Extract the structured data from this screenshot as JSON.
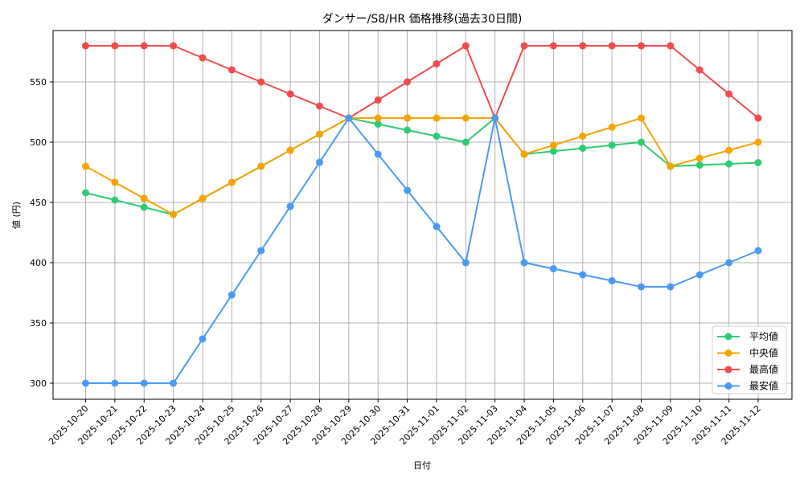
{
  "chart_data": {
    "type": "line",
    "title": "ダンサー/S8/HR 価格推移(過去30日間)",
    "xlabel": "日付",
    "ylabel": "値 (円)",
    "ylim": [
      286,
      592
    ],
    "yticks": [
      300,
      350,
      400,
      450,
      500,
      550
    ],
    "grid": true,
    "legend_position": "lower right",
    "categories": [
      "2025-10-20",
      "2025-10-21",
      "2025-10-22",
      "2025-10-23",
      "2025-10-24",
      "2025-10-25",
      "2025-10-26",
      "2025-10-27",
      "2025-10-28",
      "2025-10-29",
      "2025-10-30",
      "2025-10-31",
      "2025-11-01",
      "2025-11-02",
      "2025-11-03",
      "2025-11-04",
      "2025-11-05",
      "2025-11-06",
      "2025-11-07",
      "2025-11-08",
      "2025-11-09",
      "2025-11-10",
      "2025-11-11",
      "2025-11-12"
    ],
    "series": [
      {
        "name": "平均値",
        "color": "#2ecc71",
        "values": [
          458,
          452,
          446,
          440,
          453.3,
          466.7,
          480,
          493.3,
          506.7,
          520,
          515,
          510,
          505,
          500,
          520,
          490,
          492.5,
          495,
          497.5,
          500,
          480,
          481,
          482,
          483
        ]
      },
      {
        "name": "中央値",
        "color": "#f5a300",
        "values": [
          480,
          466.7,
          453.3,
          440,
          453.3,
          466.7,
          480,
          493.3,
          506.7,
          520,
          520,
          520,
          520,
          520,
          520,
          490,
          497.5,
          505,
          512.5,
          520,
          480,
          486.7,
          493.3,
          500
        ]
      },
      {
        "name": "最高値",
        "color": "#f24b4b",
        "values": [
          580,
          580,
          580,
          580,
          570,
          560,
          550,
          540,
          530,
          520,
          535,
          550,
          565,
          580,
          520,
          580,
          580,
          580,
          580,
          580,
          580,
          560,
          540,
          520
        ]
      },
      {
        "name": "最安値",
        "color": "#4a9af5",
        "values": [
          300,
          300,
          300,
          300,
          336.7,
          373.3,
          410,
          446.7,
          483.3,
          520,
          490,
          460,
          430,
          400,
          520,
          400,
          395,
          390,
          385,
          380,
          380,
          390,
          400,
          410
        ]
      }
    ]
  }
}
